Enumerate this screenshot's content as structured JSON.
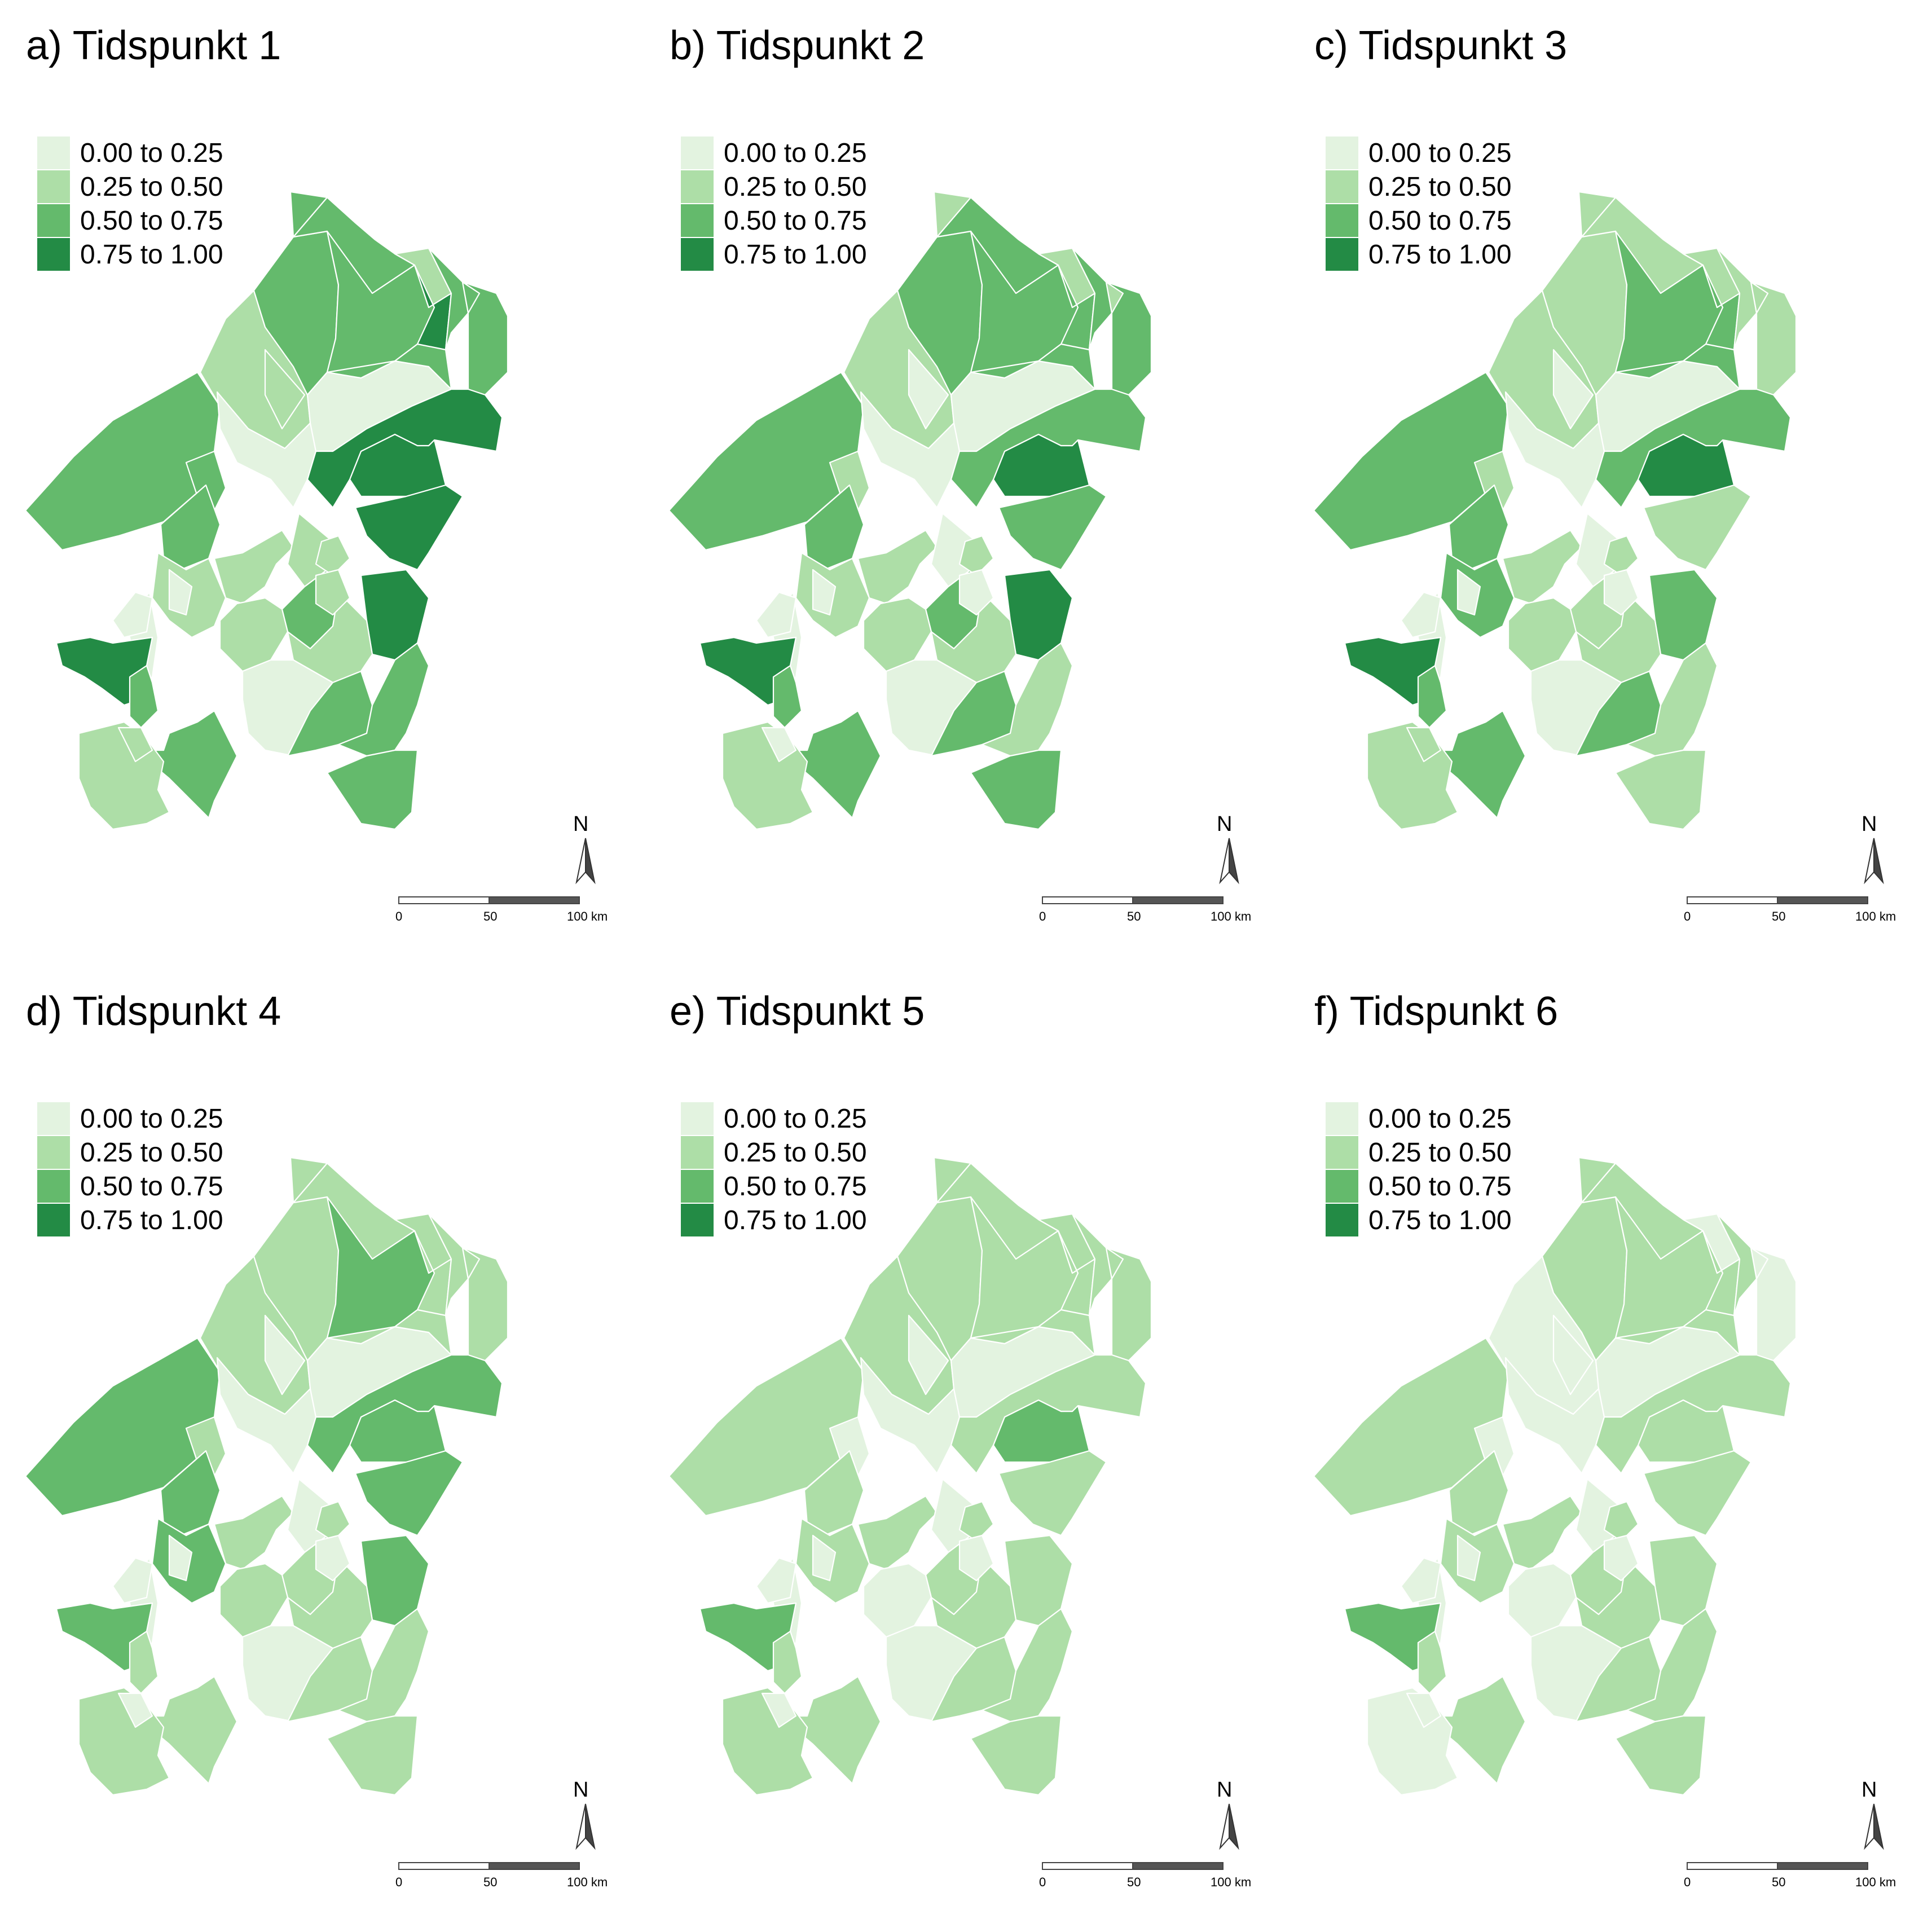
{
  "legend": {
    "classes": [
      {
        "label": "0.00 to 0.25",
        "color": "#e3f3e0"
      },
      {
        "label": "0.25 to 0.50",
        "color": "#addea7"
      },
      {
        "label": "0.50 to 0.75",
        "color": "#64ba6c"
      },
      {
        "label": "0.75 to 1.00",
        "color": "#238b45"
      }
    ]
  },
  "region_borders": "#ffffff",
  "north_arrow": {
    "label": "N",
    "icon": "north-arrow-icon"
  },
  "scale_bar": {
    "labels": [
      "0",
      "50",
      "100 km"
    ]
  },
  "panels": [
    {
      "title": "a) Tidspunkt 1",
      "classes": [
        2,
        1,
        2,
        2,
        2,
        2,
        1,
        3,
        2,
        2,
        2,
        2,
        0,
        0,
        2,
        3,
        3,
        3,
        1,
        2,
        1,
        1,
        1,
        3,
        2,
        1,
        1,
        0,
        0,
        2,
        2,
        2,
        2,
        3,
        2,
        1,
        0,
        0,
        1,
        1,
        1
      ]
    },
    {
      "title": "b) Tidspunkt 2",
      "classes": [
        2,
        1,
        2,
        2,
        1,
        2,
        1,
        2,
        2,
        1,
        2,
        1,
        0,
        0,
        2,
        3,
        2,
        2,
        0,
        2,
        1,
        1,
        0,
        3,
        2,
        1,
        1,
        0,
        0,
        2,
        2,
        1,
        2,
        3,
        2,
        1,
        0,
        0,
        1,
        0,
        0
      ]
    },
    {
      "title": "c) Tidspunkt 3",
      "classes": [
        2,
        1,
        1,
        1,
        1,
        2,
        1,
        2,
        1,
        1,
        1,
        1,
        0,
        0,
        2,
        3,
        2,
        1,
        0,
        2,
        2,
        1,
        0,
        2,
        1,
        1,
        1,
        0,
        0,
        2,
        2,
        1,
        1,
        3,
        2,
        1,
        0,
        0,
        1,
        1,
        0
      ]
    },
    {
      "title": "d) Tidspunkt 4",
      "classes": [
        2,
        1,
        1,
        1,
        1,
        2,
        1,
        1,
        1,
        1,
        1,
        1,
        0,
        0,
        1,
        2,
        2,
        2,
        0,
        2,
        2,
        1,
        0,
        2,
        1,
        1,
        1,
        0,
        0,
        1,
        1,
        1,
        1,
        2,
        1,
        1,
        0,
        0,
        1,
        0,
        0
      ]
    },
    {
      "title": "e) Tidspunkt 5",
      "classes": [
        1,
        1,
        1,
        1,
        1,
        1,
        1,
        1,
        1,
        1,
        1,
        0,
        0,
        0,
        1,
        2,
        1,
        1,
        0,
        1,
        1,
        1,
        0,
        1,
        1,
        0,
        1,
        0,
        0,
        1,
        1,
        1,
        1,
        2,
        1,
        1,
        0,
        0,
        1,
        0,
        0
      ]
    },
    {
      "title": "f) Tidspunkt 6",
      "classes": [
        1,
        0,
        1,
        1,
        1,
        1,
        0,
        1,
        1,
        0,
        0,
        0,
        0,
        0,
        1,
        1,
        1,
        1,
        0,
        1,
        1,
        1,
        0,
        1,
        1,
        0,
        1,
        0,
        0,
        1,
        1,
        1,
        1,
        2,
        1,
        0,
        0,
        0,
        1,
        0,
        0
      ]
    }
  ]
}
